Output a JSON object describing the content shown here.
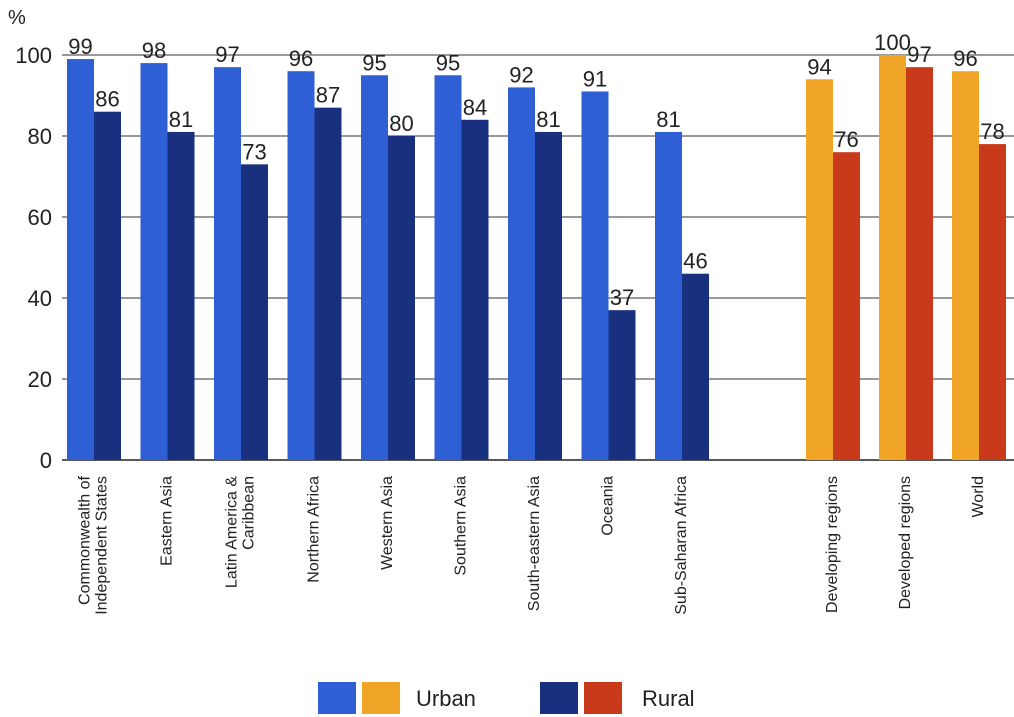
{
  "chart_data": {
    "type": "bar",
    "y_unit": "%",
    "ylim": [
      0,
      100
    ],
    "yticks": [
      0,
      20,
      40,
      60,
      80,
      100
    ],
    "grid": true,
    "legend_placement": "bottom-center",
    "categories": [
      {
        "label": [
          "Commonwealth of",
          "Independent States"
        ],
        "urban": 99,
        "rural": 86,
        "group": "region"
      },
      {
        "label": [
          "Eastern Asia"
        ],
        "urban": 98,
        "rural": 81,
        "group": "region"
      },
      {
        "label": [
          "Latin America &",
          "Caribbean"
        ],
        "urban": 97,
        "rural": 73,
        "group": "region"
      },
      {
        "label": [
          "Northern Africa"
        ],
        "urban": 96,
        "rural": 87,
        "group": "region"
      },
      {
        "label": [
          "Western Asia"
        ],
        "urban": 95,
        "rural": 80,
        "group": "region"
      },
      {
        "label": [
          "Southern Asia"
        ],
        "urban": 95,
        "rural": 84,
        "group": "region"
      },
      {
        "label": [
          "South-eastern Asia"
        ],
        "urban": 92,
        "rural": 81,
        "group": "region"
      },
      {
        "label": [
          "Oceania"
        ],
        "urban": 91,
        "rural": 37,
        "group": "region"
      },
      {
        "label": [
          "Sub-Saharan Africa"
        ],
        "urban": 81,
        "rural": 46,
        "group": "region"
      },
      {
        "label": [
          "Developing regions"
        ],
        "urban": 94,
        "rural": 76,
        "group": "aggregate"
      },
      {
        "label": [
          "Developed regions"
        ],
        "urban": 100,
        "rural": 97,
        "group": "aggregate"
      },
      {
        "label": [
          "World"
        ],
        "urban": 96,
        "rural": 78,
        "group": "aggregate"
      }
    ],
    "series": [
      {
        "name": "Urban",
        "key": "urban"
      },
      {
        "name": "Rural",
        "key": "rural"
      }
    ],
    "legend": [
      {
        "label": "Urban"
      },
      {
        "label": "Rural"
      }
    ],
    "colors": {
      "region_urban": "#2f5fd4",
      "region_rural": "#19307f",
      "aggregate_urban": "#f0a526",
      "aggregate_rural": "#c93a1a"
    }
  }
}
